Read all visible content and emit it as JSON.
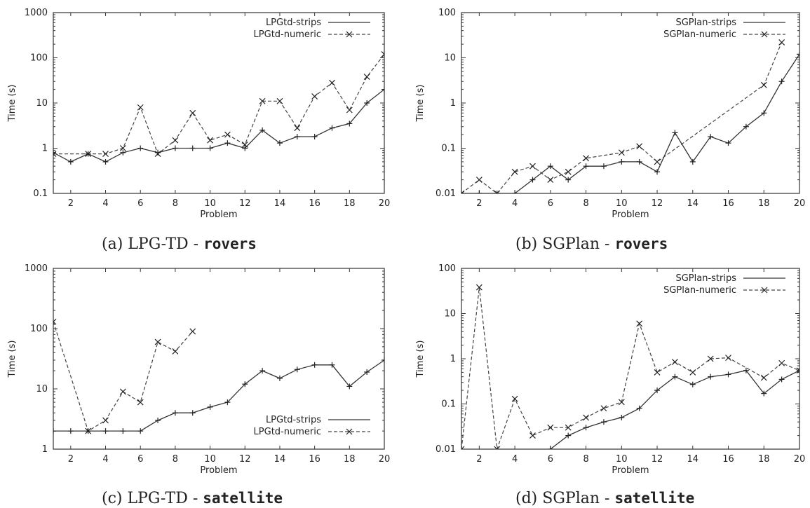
{
  "chart_data": [
    {
      "type": "line",
      "panel": "a",
      "caption_prefix": "(a) LPG-TD - ",
      "caption_domain": "rovers",
      "xlabel": "Problem",
      "ylabel": "Time (s)",
      "yscale": "log",
      "xlim": [
        1,
        20
      ],
      "ylim": [
        0.1,
        1000
      ],
      "xticks": [
        2,
        4,
        6,
        8,
        10,
        12,
        14,
        16,
        18,
        20
      ],
      "yticks": [
        0.1,
        1,
        10,
        100,
        1000
      ],
      "ytick_labels": [
        "0.1",
        "1",
        "10",
        "100",
        "1000"
      ],
      "legend_position": "top-right",
      "series": [
        {
          "name": "LPGtd-strips",
          "style": "solid",
          "marker": "+",
          "x": [
            1,
            2,
            3,
            4,
            5,
            6,
            7,
            8,
            9,
            10,
            11,
            12,
            13,
            14,
            15,
            16,
            17,
            18,
            19,
            20
          ],
          "y": [
            0.8,
            0.5,
            0.75,
            0.5,
            0.8,
            1.0,
            0.8,
            1.0,
            1.0,
            1.0,
            1.3,
            1.0,
            2.5,
            1.3,
            1.8,
            1.8,
            2.8,
            3.5,
            10,
            20
          ]
        },
        {
          "name": "LPGtd-numeric",
          "style": "dashed",
          "marker": "x",
          "x": [
            1,
            3,
            4,
            5,
            6,
            7,
            8,
            9,
            10,
            11,
            12,
            13,
            14,
            15,
            16,
            17,
            18,
            19,
            20
          ],
          "y": [
            0.75,
            0.75,
            0.75,
            1.0,
            8,
            0.75,
            1.5,
            6,
            1.5,
            2.0,
            1.2,
            11,
            11,
            2.8,
            14,
            28,
            7,
            38,
            120
          ]
        }
      ]
    },
    {
      "type": "line",
      "panel": "b",
      "caption_prefix": "(b) SGPlan - ",
      "caption_domain": "rovers",
      "xlabel": "Problem",
      "ylabel": "Time (s)",
      "yscale": "log",
      "xlim": [
        1,
        20
      ],
      "ylim": [
        0.01,
        100
      ],
      "xticks": [
        2,
        4,
        6,
        8,
        10,
        12,
        14,
        16,
        18,
        20
      ],
      "yticks": [
        0.01,
        0.1,
        1,
        10,
        100
      ],
      "ytick_labels": [
        "0.01",
        "0.1",
        "1",
        "10",
        "100"
      ],
      "legend_position": "top-right",
      "series": [
        {
          "name": "SGPlan-strips",
          "style": "solid",
          "marker": "+",
          "x": [
            1,
            2,
            3,
            4,
            5,
            6,
            7,
            8,
            9,
            10,
            11,
            12,
            13,
            14,
            15,
            16,
            17,
            18,
            19,
            20
          ],
          "y": [
            0.01,
            0.01,
            0.01,
            0.01,
            0.02,
            0.04,
            0.02,
            0.04,
            0.04,
            0.05,
            0.05,
            0.03,
            0.22,
            0.05,
            0.18,
            0.13,
            0.3,
            0.6,
            3,
            12
          ]
        },
        {
          "name": "SGPlan-numeric",
          "style": "dashed",
          "marker": "x",
          "x": [
            1,
            2,
            3,
            4,
            5,
            6,
            7,
            8,
            10,
            11,
            12,
            18,
            19
          ],
          "y": [
            0.01,
            0.02,
            0.01,
            0.03,
            0.04,
            0.02,
            0.03,
            0.06,
            0.08,
            0.11,
            0.05,
            2.5,
            22
          ]
        }
      ]
    },
    {
      "type": "line",
      "panel": "c",
      "caption_prefix": "(c) LPG-TD - ",
      "caption_domain": "satellite",
      "xlabel": "Problem",
      "ylabel": "Time (s)",
      "yscale": "log",
      "xlim": [
        1,
        20
      ],
      "ylim": [
        1,
        1000
      ],
      "xticks": [
        2,
        4,
        6,
        8,
        10,
        12,
        14,
        16,
        18,
        20
      ],
      "yticks": [
        1,
        10,
        100,
        1000
      ],
      "ytick_labels": [
        "1",
        "10",
        "100",
        "1000"
      ],
      "legend_position": "bottom-right",
      "series": [
        {
          "name": "LPGtd-strips",
          "style": "solid",
          "marker": "+",
          "x": [
            1,
            2,
            3,
            4,
            5,
            6,
            7,
            8,
            9,
            10,
            11,
            12,
            13,
            14,
            15,
            16,
            17,
            18,
            19,
            20
          ],
          "y": [
            2,
            2,
            2,
            2,
            2,
            2,
            3,
            4,
            4,
            5,
            6,
            12,
            20,
            15,
            21,
            25,
            25,
            11,
            19,
            30
          ]
        },
        {
          "name": "LPGtd-numeric",
          "style": "dashed",
          "marker": "x",
          "x": [
            1,
            3,
            4,
            5,
            6,
            7,
            8,
            9
          ],
          "y": [
            130,
            2,
            3,
            9,
            6,
            60,
            42,
            90
          ]
        }
      ]
    },
    {
      "type": "line",
      "panel": "d",
      "caption_prefix": "(d) SGPlan - ",
      "caption_domain": "satellite",
      "xlabel": "Problem",
      "ylabel": "Time (s)",
      "yscale": "log",
      "xlim": [
        1,
        20
      ],
      "ylim": [
        0.01,
        100
      ],
      "xticks": [
        2,
        4,
        6,
        8,
        10,
        12,
        14,
        16,
        18,
        20
      ],
      "yticks": [
        0.01,
        0.1,
        1,
        10,
        100
      ],
      "ytick_labels": [
        "0.01",
        "0.1",
        "1",
        "10",
        "100"
      ],
      "legend_position": "top-right",
      "series": [
        {
          "name": "SGPlan-strips",
          "style": "solid",
          "marker": "+",
          "x": [
            6,
            7,
            8,
            9,
            10,
            11,
            12,
            13,
            14,
            15,
            16,
            17,
            18,
            19,
            20
          ],
          "y": [
            0.01,
            0.02,
            0.03,
            0.04,
            0.05,
            0.08,
            0.2,
            0.4,
            0.27,
            0.4,
            0.45,
            0.55,
            0.17,
            0.35,
            0.55
          ]
        },
        {
          "name": "SGPlan-numeric",
          "style": "dashed",
          "marker": "x",
          "x": [
            1,
            2,
            3,
            4,
            5,
            6,
            7,
            8,
            9,
            10,
            11,
            12,
            13,
            14,
            15,
            16,
            18,
            19,
            20
          ],
          "y": [
            0.01,
            38,
            0.01,
            0.13,
            0.02,
            0.03,
            0.03,
            0.05,
            0.08,
            0.11,
            6,
            0.5,
            0.85,
            0.5,
            1.0,
            1.05,
            0.38,
            0.8,
            0.55
          ]
        }
      ]
    }
  ]
}
